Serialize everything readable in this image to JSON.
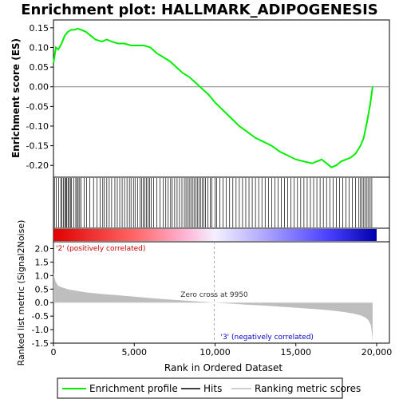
{
  "chart_data": [
    {
      "type": "line",
      "title": "Enrichment plot: HALLMARK_ADIPOGENESIS",
      "ylabel": "Enrichment score (ES)",
      "ylim": [
        -0.23,
        0.17
      ],
      "yticks": [
        "0.15",
        "0.10",
        "0.05",
        "0.00",
        "-0.05",
        "-0.10",
        "-0.15",
        "-0.20"
      ],
      "ytick_values": [
        0.15,
        0.1,
        0.05,
        0.0,
        -0.05,
        -0.1,
        -0.15,
        -0.2
      ],
      "xlim": [
        0,
        20000
      ],
      "series": [
        {
          "name": "Enrichment profile",
          "color": "#00ee00",
          "x": [
            0,
            150,
            300,
            500,
            700,
            900,
            1100,
            1300,
            1500,
            1700,
            2000,
            2300,
            2600,
            3000,
            3300,
            3600,
            4000,
            4400,
            4800,
            5200,
            5600,
            6000,
            6400,
            6800,
            7200,
            7600,
            8000,
            8400,
            8800,
            9200,
            9600,
            10000,
            10500,
            11000,
            11500,
            12000,
            12500,
            13000,
            13500,
            14000,
            14500,
            15000,
            15500,
            16000,
            16300,
            16600,
            16900,
            17200,
            17500,
            17800,
            18100,
            18400,
            18700,
            19000,
            19200,
            19400,
            19600,
            19750
          ],
          "y": [
            0.06,
            0.1,
            0.095,
            0.11,
            0.13,
            0.14,
            0.145,
            0.145,
            0.148,
            0.145,
            0.14,
            0.13,
            0.12,
            0.115,
            0.12,
            0.115,
            0.11,
            0.11,
            0.105,
            0.105,
            0.105,
            0.1,
            0.085,
            0.075,
            0.065,
            0.05,
            0.035,
            0.025,
            0.01,
            -0.005,
            -0.02,
            -0.04,
            -0.06,
            -0.08,
            -0.1,
            -0.115,
            -0.13,
            -0.14,
            -0.15,
            -0.165,
            -0.175,
            -0.185,
            -0.19,
            -0.195,
            -0.19,
            -0.185,
            -0.195,
            -0.205,
            -0.2,
            -0.19,
            -0.185,
            -0.18,
            -0.17,
            -0.15,
            -0.13,
            -0.09,
            -0.045,
            0.0
          ]
        }
      ]
    },
    {
      "type": "scatter",
      "title": "",
      "note": "Hits",
      "series": [
        {
          "name": "Hits",
          "color": "#000000",
          "x": [
            60,
            180,
            320,
            450,
            520,
            610,
            700,
            760,
            820,
            900,
            960,
            1050,
            1120,
            1250,
            1380,
            1460,
            1530,
            1620,
            1710,
            1900,
            2050,
            2250,
            2480,
            2700,
            2880,
            3050,
            3150,
            3300,
            3450,
            3600,
            3800,
            3950,
            4100,
            4250,
            4400,
            4550,
            4700,
            4800,
            4950,
            5050,
            5200,
            5350,
            5450,
            5550,
            5650,
            5750,
            5850,
            5950,
            6050,
            6200,
            6400,
            6600,
            6800,
            6950,
            7100,
            7250,
            7350,
            7500,
            7650,
            7800,
            7950,
            8100,
            8200,
            8300,
            8400,
            8500,
            8600,
            8700,
            8800,
            8900,
            9000,
            9100,
            9200,
            9300,
            9400,
            9550,
            9700,
            9800,
            10000,
            10100,
            10300,
            10500,
            10700,
            10900,
            11100,
            11300,
            11500,
            11700,
            11900,
            12100,
            12300,
            12500,
            12700,
            12900,
            13100,
            13300,
            13500,
            13700,
            13900,
            14100,
            14300,
            14500,
            14700,
            14900,
            15100,
            15300,
            15500,
            15700,
            15900,
            16100,
            16300,
            16500,
            16700,
            16900,
            17100,
            17300,
            17500,
            17700,
            17900,
            18100,
            18300,
            18500,
            18700,
            18900,
            19000,
            19100,
            19200,
            19300,
            19400,
            19500,
            19600,
            19700
          ]
        }
      ]
    },
    {
      "type": "area",
      "ylabel": "Ranked list metric (Signal2Noise)",
      "xlabel": "Rank in Ordered Dataset",
      "ylim": [
        -1.5,
        2.25
      ],
      "yticks": [
        "2.0",
        "1.5",
        "1.0",
        "0.5",
        "0.0",
        "-0.5",
        "-1.0",
        "-1.5"
      ],
      "ytick_values": [
        2.0,
        1.5,
        1.0,
        0.5,
        0.0,
        -0.5,
        -1.0,
        -1.5
      ],
      "xlim": [
        0,
        20000
      ],
      "xticks": [
        "0",
        "5,000",
        "10,000",
        "15,000",
        "20,000"
      ],
      "xtick_values": [
        0,
        5000,
        10000,
        15000,
        20000
      ],
      "series": [
        {
          "name": "Ranking metric scores",
          "color": "#bebebe",
          "x": [
            0,
            50,
            150,
            300,
            600,
            1000,
            2000,
            3000,
            4000,
            5000,
            6000,
            7000,
            8000,
            9000,
            9950,
            11000,
            12000,
            13000,
            14000,
            15000,
            16000,
            17000,
            18000,
            18600,
            19000,
            19300,
            19500,
            19650,
            19750
          ],
          "y": [
            1.1,
            0.95,
            0.75,
            0.62,
            0.55,
            0.48,
            0.38,
            0.32,
            0.27,
            0.22,
            0.17,
            0.12,
            0.08,
            0.04,
            0.0,
            -0.04,
            -0.08,
            -0.11,
            -0.15,
            -0.19,
            -0.23,
            -0.28,
            -0.35,
            -0.41,
            -0.47,
            -0.55,
            -0.66,
            -0.85,
            -1.4
          ]
        }
      ],
      "annotations": {
        "zero_cross": "Zero cross at 9950",
        "zero_cross_x": 9950,
        "pos_label": "'2' (positively correlated)",
        "neg_label": "'3' (negatively correlated)",
        "pos_color": "#cc0000",
        "neg_color": "#0000cc"
      }
    }
  ],
  "legend": {
    "items": [
      {
        "label": "Enrichment profile",
        "color": "#00ee00"
      },
      {
        "label": "Hits",
        "color": "#000000"
      },
      {
        "label": "Ranking metric scores",
        "color": "#bebebe"
      }
    ]
  }
}
